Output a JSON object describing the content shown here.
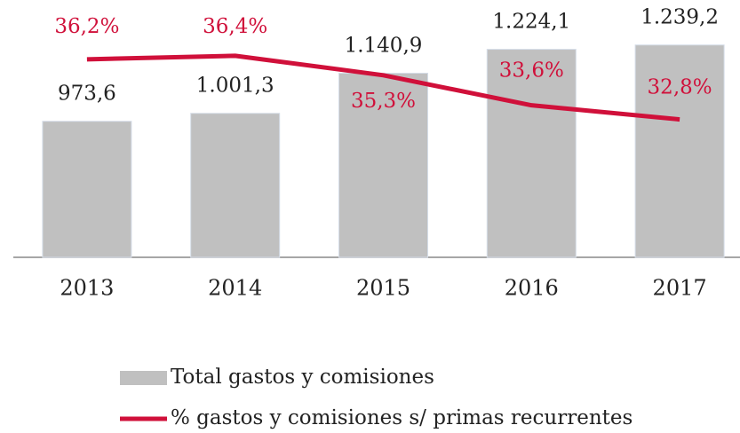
{
  "chart_data": {
    "type": "bar-line",
    "categories": [
      "2013",
      "2014",
      "2015",
      "2016",
      "2017"
    ],
    "series": [
      {
        "name": "Total gastos y comisiones",
        "type": "bar",
        "color": "#c0c0c0",
        "values": [
          973.6,
          1001.3,
          1140.9,
          1224.1,
          1239.2
        ],
        "value_labels": [
          "973,6",
          "1.001,3",
          "1.140,9",
          "1.224,1",
          "1.239,2"
        ]
      },
      {
        "name": "% gastos y comisiones s/ primas recurrentes",
        "type": "line",
        "color": "#d0103a",
        "axis": "y2",
        "values": [
          36.2,
          36.4,
          35.3,
          33.6,
          32.8
        ],
        "value_labels": [
          "36,2%",
          "36,4%",
          "35,3%",
          "33,6%",
          "32,8%"
        ]
      }
    ],
    "ylim": [
      500,
      1300
    ],
    "y2lim": [
      25,
      38
    ]
  }
}
